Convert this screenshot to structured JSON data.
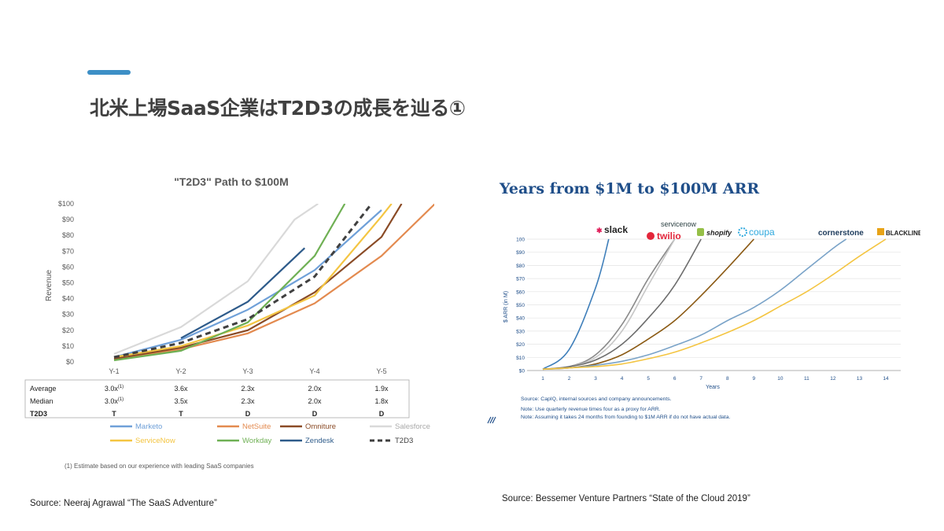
{
  "slide": {
    "title": "北米上場SaaS企業はT2D3の成長を辿る①",
    "accent_color": "#3d8fc6"
  },
  "sources": {
    "left": "Source: Neeraj Agrawal “The SaaS Adventure”",
    "right": "Source: Bessemer Venture Partners “State of the Cloud 2019”"
  },
  "chart_data": [
    {
      "type": "line",
      "title": "\"T2D3\" Path to $100M",
      "xlabel": "",
      "ylabel": "Revenue",
      "categories": [
        "Y-1",
        "Y-2",
        "Y-3",
        "Y-4",
        "Y-5"
      ],
      "x": [
        0,
        1,
        2,
        3,
        4
      ],
      "ylim": [
        0,
        100
      ],
      "yticks": [
        "$0",
        "$10",
        "$20",
        "$30",
        "$40",
        "$50",
        "$60",
        "$70",
        "$80",
        "$90",
        "$100"
      ],
      "grid": false,
      "legend_position": "bottom",
      "series": [
        {
          "name": "Marketo",
          "color": "#6fa0d8",
          "dash": false,
          "points": [
            [
              0,
              3
            ],
            [
              1,
              14
            ],
            [
              2,
              33
            ],
            [
              3,
              58
            ],
            [
              4,
              96
            ]
          ]
        },
        {
          "name": "NetSuite",
          "color": "#e38a4f",
          "dash": false,
          "points": [
            [
              0,
              2
            ],
            [
              1,
              8
            ],
            [
              2,
              18
            ],
            [
              3,
              37
            ],
            [
              4,
              67
            ],
            [
              4.8,
              100
            ]
          ]
        },
        {
          "name": "Omniture",
          "color": "#8a4b26",
          "dash": false,
          "points": [
            [
              0,
              2
            ],
            [
              1,
              9
            ],
            [
              2,
              20
            ],
            [
              3,
              44
            ],
            [
              4,
              79
            ],
            [
              4.3,
              100
            ]
          ]
        },
        {
          "name": "Salesforce",
          "color": "#d9d9d9",
          "dash": false,
          "points": [
            [
              0,
              5
            ],
            [
              1,
              22
            ],
            [
              2,
              51
            ],
            [
              2.7,
              90
            ],
            [
              3.05,
              100
            ]
          ]
        },
        {
          "name": "ServiceNow",
          "color": "#f4c542",
          "dash": false,
          "points": [
            [
              0,
              3
            ],
            [
              1,
              10
            ],
            [
              2,
              23
            ],
            [
              3,
              42
            ],
            [
              4,
              92
            ],
            [
              4.15,
              100
            ]
          ]
        },
        {
          "name": "Workday",
          "color": "#6fb054",
          "dash": false,
          "points": [
            [
              0,
              1
            ],
            [
              1,
              7
            ],
            [
              2,
              25
            ],
            [
              3,
              67
            ],
            [
              3.45,
              100
            ]
          ]
        },
        {
          "name": "Zendesk",
          "color": "#2e5b8a",
          "dash": false,
          "points": [
            [
              1,
              15
            ],
            [
              2,
              38
            ],
            [
              2.85,
              72
            ]
          ]
        },
        {
          "name": "T2D3",
          "color": "#404040",
          "dash": true,
          "points": [
            [
              0,
              3
            ],
            [
              1,
              12
            ],
            [
              2,
              27
            ],
            [
              3,
              54
            ],
            [
              3.85,
              100
            ]
          ]
        }
      ],
      "table": {
        "rows": [
          {
            "label": "Average",
            "values": [
              "3.0x",
              "3.6x",
              "2.3x",
              "2.0x",
              "1.9x"
            ],
            "note_on_first": "(1)"
          },
          {
            "label": "Median",
            "values": [
              "3.0x",
              "3.5x",
              "2.3x",
              "2.0x",
              "1.8x"
            ],
            "note_on_first": "(1)"
          },
          {
            "label": "T2D3",
            "values": [
              "T",
              "T",
              "D",
              "D",
              "D"
            ],
            "note_on_first": ""
          }
        ]
      },
      "footnote": "(1)  Estimate based on our experience with leading SaaS companies"
    },
    {
      "type": "line",
      "title": "Years from $1M to $100M ARR",
      "xlabel": "Years",
      "ylabel": "$ ARR (in M)",
      "x": [
        1,
        2,
        3,
        4,
        5,
        6,
        7,
        8,
        9,
        10,
        11,
        12,
        13,
        14
      ],
      "ylim": [
        0,
        100
      ],
      "yticks": [
        "$0",
        "$10",
        "$20",
        "$30",
        "$40",
        "$50",
        "$60",
        "$70",
        "$80",
        "$90",
        "100"
      ],
      "grid": true,
      "series": [
        {
          "name": "slack",
          "color": "#3f7fba",
          "points": [
            [
              1,
              1
            ],
            [
              2,
              16
            ],
            [
              3,
              63
            ],
            [
              3.5,
              100
            ]
          ]
        },
        {
          "name": "twilio",
          "color": "#8a8a8a",
          "points": [
            [
              1,
              1
            ],
            [
              2,
              3
            ],
            [
              3,
              12
            ],
            [
              4,
              35
            ],
            [
              5,
              70
            ],
            [
              6,
              100
            ]
          ]
        },
        {
          "name": "servicenow",
          "color": "#c7c7c7",
          "points": [
            [
              1,
              1
            ],
            [
              2,
              3
            ],
            [
              3,
              10
            ],
            [
              4,
              30
            ],
            [
              5,
              65
            ],
            [
              6,
              100
            ]
          ]
        },
        {
          "name": "shopify",
          "color": "#6d6d6d",
          "points": [
            [
              1,
              1
            ],
            [
              2,
              3
            ],
            [
              3,
              8
            ],
            [
              4,
              20
            ],
            [
              5,
              40
            ],
            [
              6,
              65
            ],
            [
              7,
              100
            ]
          ]
        },
        {
          "name": "coupa",
          "color": "#8b5a14",
          "points": [
            [
              1,
              1
            ],
            [
              2,
              2
            ],
            [
              3,
              5
            ],
            [
              4,
              12
            ],
            [
              5,
              24
            ],
            [
              6,
              38
            ],
            [
              7,
              57
            ],
            [
              8,
              78
            ],
            [
              9,
              100
            ]
          ]
        },
        {
          "name": "cornerstone",
          "color": "#7aa3c8",
          "points": [
            [
              1,
              1
            ],
            [
              2,
              2
            ],
            [
              3,
              4
            ],
            [
              4,
              7
            ],
            [
              5,
              12
            ],
            [
              6,
              19
            ],
            [
              7,
              27
            ],
            [
              8,
              38
            ],
            [
              9,
              48
            ],
            [
              10,
              61
            ],
            [
              11,
              77
            ],
            [
              12,
              93
            ],
            [
              12.5,
              100
            ]
          ]
        },
        {
          "name": "BLACKLINE",
          "color": "#f4c542",
          "points": [
            [
              1,
              1
            ],
            [
              2,
              2
            ],
            [
              3,
              3
            ],
            [
              4,
              5
            ],
            [
              5,
              9
            ],
            [
              6,
              14
            ],
            [
              7,
              21
            ],
            [
              8,
              29
            ],
            [
              9,
              38
            ],
            [
              10,
              49
            ],
            [
              11,
              60
            ],
            [
              12,
              73
            ],
            [
              13,
              87
            ],
            [
              14,
              100
            ]
          ]
        }
      ],
      "labels": {
        "slack": "slack",
        "servicenow": "servicenow",
        "twilio": "twilio",
        "shopify": "shopify",
        "coupa": "coupa",
        "cornerstone": "cornerstone",
        "blackline": "BLACKLINE"
      },
      "notes": [
        "Source: CapIQ, internal sources and company announcements.",
        "Note: Use quarterly revenue times four as a proxy for ARR.",
        "Note: Assuming it takes 24 months from founding to $1M ARR if do not have actual data."
      ]
    }
  ]
}
